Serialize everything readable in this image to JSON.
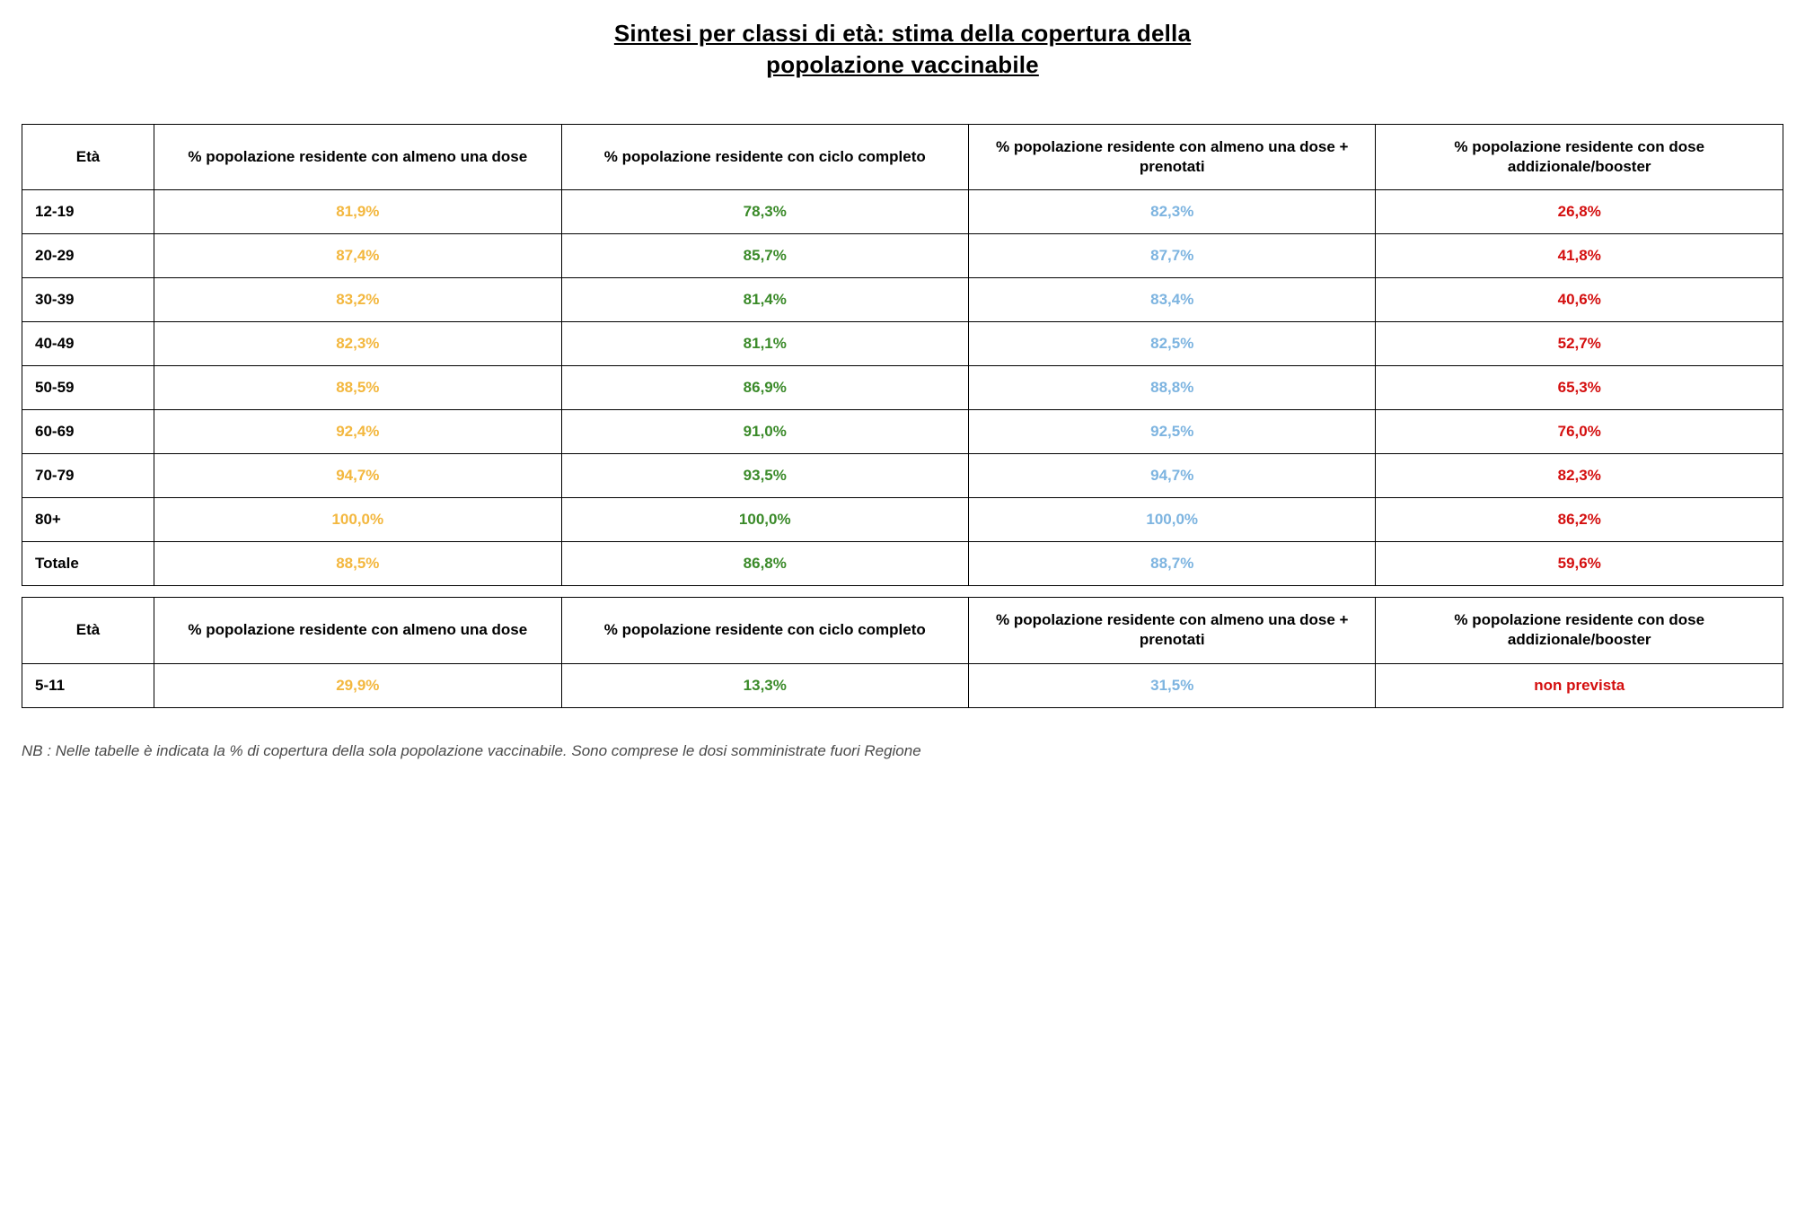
{
  "title_line1": "Sintesi per classi di età: stima della copertura della",
  "title_line2": "popolazione vaccinabile",
  "columns": {
    "age": "Età",
    "one_dose": "% popolazione residente con almeno una dose",
    "full_cycle": "% popolazione residente con ciclo completo",
    "one_dose_booked": "% popolazione residente con almeno una dose + prenotati",
    "booster": "% popolazione residente con dose addizionale/booster"
  },
  "colors": {
    "one_dose": "#f3b73e",
    "full_cycle": "#3a8a29",
    "one_dose_booked": "#7db4e0",
    "booster": "#d40f0f",
    "border": "#000000",
    "text": "#000000",
    "footnote": "#4a4a4a",
    "background": "#ffffff"
  },
  "rows_main": [
    {
      "age": "12-19",
      "one_dose": "81,9%",
      "full_cycle": "78,3%",
      "one_dose_booked": "82,3%",
      "booster": "26,8%"
    },
    {
      "age": "20-29",
      "one_dose": "87,4%",
      "full_cycle": "85,7%",
      "one_dose_booked": "87,7%",
      "booster": "41,8%"
    },
    {
      "age": "30-39",
      "one_dose": "83,2%",
      "full_cycle": "81,4%",
      "one_dose_booked": "83,4%",
      "booster": "40,6%"
    },
    {
      "age": "40-49",
      "one_dose": "82,3%",
      "full_cycle": "81,1%",
      "one_dose_booked": "82,5%",
      "booster": "52,7%"
    },
    {
      "age": "50-59",
      "one_dose": "88,5%",
      "full_cycle": "86,9%",
      "one_dose_booked": "88,8%",
      "booster": "65,3%"
    },
    {
      "age": "60-69",
      "one_dose": "92,4%",
      "full_cycle": "91,0%",
      "one_dose_booked": "92,5%",
      "booster": "76,0%"
    },
    {
      "age": "70-79",
      "one_dose": "94,7%",
      "full_cycle": "93,5%",
      "one_dose_booked": "94,7%",
      "booster": "82,3%"
    },
    {
      "age": "80+",
      "one_dose": "100,0%",
      "full_cycle": "100,0%",
      "one_dose_booked": "100,0%",
      "booster": "86,2%"
    },
    {
      "age": "Totale",
      "one_dose": "88,5%",
      "full_cycle": "86,8%",
      "one_dose_booked": "88,7%",
      "booster": "59,6%"
    }
  ],
  "rows_secondary": [
    {
      "age": "5-11",
      "one_dose": "29,9%",
      "full_cycle": "13,3%",
      "one_dose_booked": "31,5%",
      "booster": "non prevista"
    }
  ],
  "footnote": "NB : Nelle tabelle è indicata la % di copertura della sola popolazione vaccinabile. Sono comprese le dosi somministrate fuori Regione"
}
